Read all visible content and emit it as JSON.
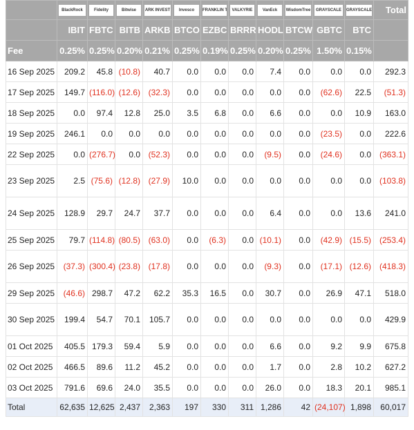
{
  "header": {
    "issuers": [
      "BlackRock",
      "Fidelity",
      "Bitwise",
      "ARK INVEST",
      "Invesco",
      "FRANKLIN TEMPLETON",
      "VALKYRIE",
      "VanEck",
      "WisdomTree",
      "GRAYSCALE",
      "GRAYSCALE"
    ],
    "total": "Total",
    "tickers": [
      "IBIT",
      "FBTC",
      "BITB",
      "ARKB",
      "BTCO",
      "EZBC",
      "BRRR",
      "HODL",
      "BTCW",
      "GBTC",
      "BTC"
    ],
    "fee_label": "Fee",
    "fees": [
      "0.25%",
      "0.25%",
      "0.20%",
      "0.21%",
      "0.25%",
      "0.19%",
      "0.25%",
      "0.20%",
      "0.25%",
      "1.50%",
      "0.15%"
    ]
  },
  "rows": [
    {
      "date": "16 Sep 2025",
      "values": [
        "209.2",
        "45.8",
        "(10.8)",
        "40.7",
        "0.0",
        "0.0",
        "0.0",
        "7.4",
        "0.0",
        "0.0",
        "0.0"
      ],
      "total": "292.3"
    },
    {
      "date": "17 Sep 2025",
      "values": [
        "149.7",
        "(116.0)",
        "(12.6)",
        "(32.3)",
        "0.0",
        "0.0",
        "0.0",
        "0.0",
        "0.0",
        "(62.6)",
        "22.5"
      ],
      "total": "(51.3)"
    },
    {
      "date": "18 Sep 2025",
      "values": [
        "0.0",
        "97.4",
        "12.8",
        "25.0",
        "3.5",
        "6.8",
        "0.0",
        "6.6",
        "0.0",
        "0.0",
        "10.9"
      ],
      "total": "163.0"
    },
    {
      "date": "19 Sep 2025",
      "values": [
        "246.1",
        "0.0",
        "0.0",
        "0.0",
        "0.0",
        "0.0",
        "0.0",
        "0.0",
        "0.0",
        "(23.5)",
        "0.0"
      ],
      "total": "222.6"
    },
    {
      "date": "22 Sep 2025",
      "values": [
        "0.0",
        "(276.7)",
        "0.0",
        "(52.3)",
        "0.0",
        "0.0",
        "0.0",
        "(9.5)",
        "0.0",
        "(24.6)",
        "0.0"
      ],
      "total": "(363.1)"
    },
    {
      "date": "23 Sep 2025",
      "values": [
        "2.5",
        "(75.6)",
        "(12.8)",
        "(27.9)",
        "10.0",
        "0.0",
        "0.0",
        "0.0",
        "0.0",
        "0.0",
        "0.0"
      ],
      "total": "(103.8)"
    },
    {
      "date": "24 Sep 2025",
      "values": [
        "128.9",
        "29.7",
        "24.7",
        "37.7",
        "0.0",
        "0.0",
        "0.0",
        "6.4",
        "0.0",
        "0.0",
        "13.6"
      ],
      "total": "241.0"
    },
    {
      "date": "25 Sep 2025",
      "values": [
        "79.7",
        "(114.8)",
        "(80.5)",
        "(63.0)",
        "0.0",
        "(6.3)",
        "0.0",
        "(10.1)",
        "0.0",
        "(42.9)",
        "(15.5)"
      ],
      "total": "(253.4)"
    },
    {
      "date": "26 Sep 2025",
      "values": [
        "(37.3)",
        "(300.4)",
        "(23.8)",
        "(17.8)",
        "0.0",
        "0.0",
        "0.0",
        "(9.3)",
        "0.0",
        "(17.1)",
        "(12.6)"
      ],
      "total": "(418.3)"
    },
    {
      "date": "29 Sep 2025",
      "values": [
        "(46.6)",
        "298.7",
        "47.2",
        "62.2",
        "35.3",
        "16.5",
        "0.0",
        "30.7",
        "0.0",
        "26.9",
        "47.1"
      ],
      "total": "518.0"
    },
    {
      "date": "30 Sep 2025",
      "values": [
        "199.4",
        "54.7",
        "70.1",
        "105.7",
        "0.0",
        "0.0",
        "0.0",
        "0.0",
        "0.0",
        "0.0",
        "0.0"
      ],
      "total": "429.9"
    },
    {
      "date": "01 Oct 2025",
      "values": [
        "405.5",
        "179.3",
        "59.4",
        "5.9",
        "0.0",
        "0.0",
        "0.0",
        "6.6",
        "0.0",
        "9.2",
        "9.9"
      ],
      "total": "675.8"
    },
    {
      "date": "02 Oct 2025",
      "values": [
        "466.5",
        "89.6",
        "11.2",
        "45.2",
        "0.0",
        "0.0",
        "0.0",
        "1.7",
        "0.0",
        "2.8",
        "10.2"
      ],
      "total": "627.2"
    },
    {
      "date": "03 Oct 2025",
      "values": [
        "791.6",
        "69.6",
        "24.0",
        "35.5",
        "0.0",
        "0.0",
        "0.0",
        "26.0",
        "0.0",
        "18.3",
        "20.1"
      ],
      "total": "985.1"
    }
  ],
  "total_row": {
    "label": "Total",
    "values": [
      "62,635",
      "12,625",
      "2,437",
      "2,363",
      "197",
      "330",
      "311",
      "1,286",
      "42",
      "(24,107)",
      "1,898"
    ],
    "total": "60,017"
  }
}
